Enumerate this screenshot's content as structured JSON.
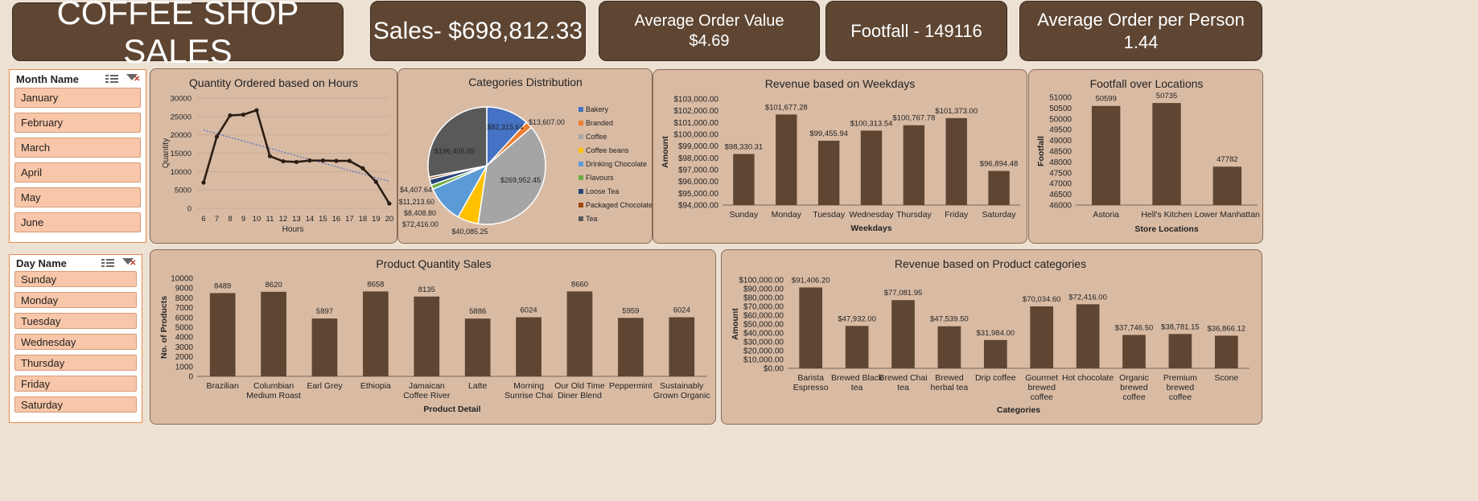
{
  "kpis": {
    "title": "COFFEE SHOP SALES",
    "sales": "Sales- $698,812.33",
    "aov_label": "Average Order Value",
    "aov_value": "$4.69",
    "footfall": "Footfall - 149116",
    "aopp_label": "Average Order per Person",
    "aopp_value": "1.44"
  },
  "slicers": {
    "month": {
      "title": "Month Name",
      "items": [
        "January",
        "February",
        "March",
        "April",
        "May",
        "June"
      ]
    },
    "day": {
      "title": "Day Name",
      "items": [
        "Sunday",
        "Monday",
        "Tuesday",
        "Wednesday",
        "Thursday",
        "Friday",
        "Saturday"
      ]
    }
  },
  "colors": {
    "bar": "#5E4633",
    "panel": "#D9BBA4",
    "kpi": "#5E4633"
  },
  "chart_data": [
    {
      "id": "hours",
      "type": "line",
      "title": "Quantity Ordered based on Hours",
      "xlabel": "Hours",
      "ylabel": "Quantity",
      "x": [
        6,
        7,
        8,
        9,
        10,
        11,
        12,
        13,
        14,
        15,
        16,
        17,
        18,
        19,
        20
      ],
      "values": [
        7000,
        19500,
        25300,
        25500,
        26700,
        14200,
        12800,
        12600,
        13000,
        13000,
        12900,
        12900,
        10900,
        7200,
        1300
      ],
      "ylim": [
        0,
        30000
      ],
      "yticks": [
        0,
        5000,
        10000,
        15000,
        20000,
        25000,
        30000
      ],
      "trendline": true,
      "grid": true
    },
    {
      "id": "categories",
      "type": "pie",
      "title": "Categories Distribution",
      "categories": [
        "Bakery",
        "Branded",
        "Coffee",
        "Coffee beans",
        "Drinking Chocolate",
        "Flavours",
        "Loose Tea",
        "Packaged Chocolate",
        "Tea"
      ],
      "values": [
        82315.64,
        13607.0,
        269952.45,
        40085.25,
        72416.0,
        8408.8,
        11213.6,
        4407.64,
        196405.95
      ],
      "labels": [
        "$82,315.64",
        "$13,607.00",
        "$269,952.45",
        "$40,085.25",
        "$72,416.00",
        "$8,408.80",
        "$11,213.60",
        "$4,407.64",
        "$196,405.95"
      ],
      "colors": [
        "#4472C4",
        "#ED7D31",
        "#A5A5A5",
        "#FFC000",
        "#5B9BD5",
        "#70AD47",
        "#264478",
        "#9E480E",
        "#595959"
      ],
      "legend": "right"
    },
    {
      "id": "weekdays",
      "type": "bar",
      "title": "Revenue based on Weekdays",
      "xlabel": "Weekdays",
      "ylabel": "Amount",
      "categories": [
        "Sunday",
        "Monday",
        "Tuesday",
        "Wednesday",
        "Thursday",
        "Friday",
        "Saturday"
      ],
      "values": [
        98330.31,
        101677.28,
        99455.94,
        100313.54,
        100767.78,
        101373.0,
        96894.48
      ],
      "labels": [
        "$98,330.31",
        "$101,677.28",
        "$99,455.94",
        "$100,313.54",
        "$100,767.78",
        "$101,373.00",
        "$96,894.48"
      ],
      "ylim": [
        94000,
        103000
      ],
      "yticks": [
        94000,
        95000,
        96000,
        97000,
        98000,
        99000,
        100000,
        101000,
        102000,
        103000
      ],
      "ytick_labels": [
        "$94,000.00",
        "$95,000.00",
        "$96,000.00",
        "$97,000.00",
        "$98,000.00",
        "$99,000.00",
        "$100,000.00",
        "$101,000.00",
        "$102,000.00",
        "$103,000.00"
      ]
    },
    {
      "id": "locations",
      "type": "bar",
      "title": "Footfall over Locations",
      "xlabel": "Store Locations",
      "ylabel": "Footfall",
      "categories": [
        "Astoria",
        "Hell's Kitchen",
        "Lower Manhattan"
      ],
      "values": [
        50599,
        50735,
        47782
      ],
      "labels": [
        "50599",
        "50735",
        "47782"
      ],
      "ylim": [
        46000,
        51000
      ],
      "yticks": [
        46000,
        46500,
        47000,
        47500,
        48000,
        48500,
        49000,
        49500,
        50000,
        50500,
        51000
      ]
    },
    {
      "id": "products",
      "type": "bar",
      "title": "Product Quantity Sales",
      "xlabel": "Product Detail",
      "ylabel": "No. of Products",
      "categories": [
        [
          "Brazilian"
        ],
        [
          "Columbian",
          "Medium Roast"
        ],
        [
          "Earl Grey"
        ],
        [
          "Ethiopia"
        ],
        [
          "Jamaican",
          "Coffee River"
        ],
        [
          "Latte"
        ],
        [
          "Morning",
          "Sunrise Chai"
        ],
        [
          "Our Old Time",
          "Diner Blend"
        ],
        [
          "Peppermint"
        ],
        [
          "Sustainably",
          "Grown Organic"
        ]
      ],
      "values": [
        8489,
        8620,
        5897,
        8658,
        8135,
        5886,
        6024,
        8660,
        5959,
        6024
      ],
      "labels": [
        "8489",
        "8620",
        "5897",
        "8658",
        "8135",
        "5886",
        "6024",
        "8660",
        "5959",
        "6024"
      ],
      "ylim": [
        0,
        10000
      ],
      "yticks": [
        0,
        1000,
        2000,
        3000,
        4000,
        5000,
        6000,
        7000,
        8000,
        9000,
        10000
      ]
    },
    {
      "id": "prodcat",
      "type": "bar",
      "title": "Revenue based on Product categories",
      "xlabel": "Categories",
      "ylabel": "Amount",
      "categories": [
        [
          "Barista",
          "Espresso"
        ],
        [
          "Brewed Black",
          "tea"
        ],
        [
          "Brewed Chai",
          "tea"
        ],
        [
          "Brewed",
          "herbal tea"
        ],
        [
          "Drip coffee"
        ],
        [
          "Gourmet",
          "brewed",
          "coffee"
        ],
        [
          "Hot chocolate"
        ],
        [
          "Organic",
          "brewed",
          "coffee"
        ],
        [
          "Premium",
          "brewed",
          "coffee"
        ],
        [
          "Scone"
        ]
      ],
      "values": [
        91406.2,
        47932.0,
        77081.95,
        47539.5,
        31984.0,
        70034.6,
        72416.0,
        37746.5,
        38781.15,
        36866.12
      ],
      "labels": [
        "$91,406.20",
        "$47,932.00",
        "$77,081.95",
        "$47,539.50",
        "$31,984.00",
        "$70,034.60",
        "$72,416.00",
        "$37,746.50",
        "$38,781.15",
        "$36,866.12"
      ],
      "ylim": [
        0,
        100000
      ],
      "yticks": [
        0,
        10000,
        20000,
        30000,
        40000,
        50000,
        60000,
        70000,
        80000,
        90000,
        100000
      ],
      "ytick_labels": [
        "$0.00",
        "$10,000.00",
        "$20,000.00",
        "$30,000.00",
        "$40,000.00",
        "$50,000.00",
        "$60,000.00",
        "$70,000.00",
        "$80,000.00",
        "$90,000.00",
        "$100,000.00"
      ]
    }
  ]
}
